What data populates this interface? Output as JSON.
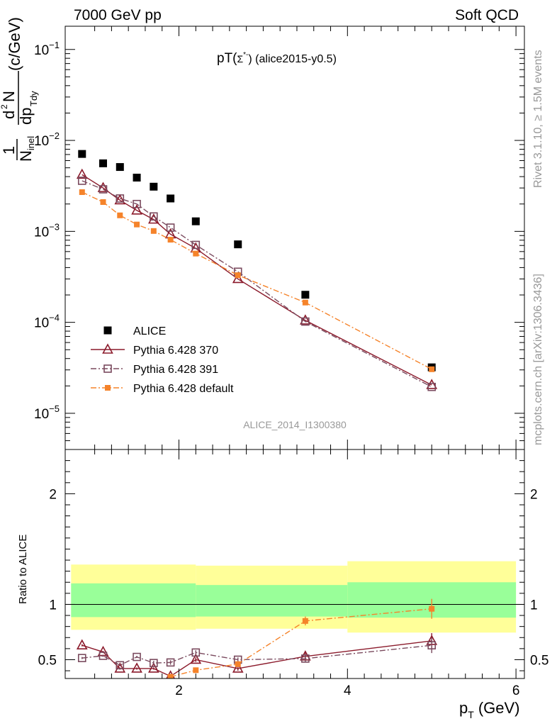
{
  "header": {
    "left": "7000 GeV pp",
    "right": "Soft QCD"
  },
  "side_labels": {
    "rivet": "Rivet 3.1.10, ≥ 1.5M events",
    "mcplots": "mcplots.cern.ch [arXiv:1306.3436]"
  },
  "watermark": "ALICE_2014_I1300380",
  "colors": {
    "alice": "#000000",
    "p370": "#8b1a2b",
    "p391": "#7a4a5e",
    "pdefault": "#f5832a",
    "band_inner": "#99ff99",
    "band_outer": "#ffff99"
  },
  "chart_data": [
    {
      "type": "scatter",
      "title": "pT(Σ*⁻) (alice2015-y0.5)",
      "title_main": "pT(",
      "title_sym": "Σ",
      "title_sup": "*-",
      "title_rest": ") (alice2015-y0.5)",
      "ylabel": "1/N_inel d²N/dp_T dy (c/GeV)",
      "ylabel_parts": {
        "one": "1",
        "N": "N",
        "inel": "inel",
        "d": "d",
        "two": "2",
        "N2": "N",
        "dp": "dp",
        "Tdy": "Tdy",
        "unit": "(c/GeV)"
      },
      "yscale": "log",
      "ylim": [
        4e-06,
        0.18
      ],
      "xlim": [
        0.65,
        6.1
      ],
      "yticks": [
        {
          "v": 1e-05,
          "base": "10",
          "exp": "−5"
        },
        {
          "v": 0.0001,
          "base": "10",
          "exp": "−4"
        },
        {
          "v": 0.001,
          "base": "10",
          "exp": "−3"
        },
        {
          "v": 0.01,
          "base": "10",
          "exp": "−2"
        },
        {
          "v": 0.1,
          "base": "10",
          "exp": "−1"
        }
      ],
      "legend_position": "lower-left",
      "series": [
        {
          "name": "ALICE",
          "key": "alice",
          "marker": "filled-square",
          "x": [
            0.85,
            1.1,
            1.3,
            1.5,
            1.7,
            1.9,
            2.2,
            2.7,
            3.5,
            5.0
          ],
          "y": [
            0.0071,
            0.0056,
            0.0051,
            0.0039,
            0.0031,
            0.0023,
            0.00129,
            0.00072,
            0.000201,
            3.2e-05
          ]
        },
        {
          "name": "Pythia 6.428 370",
          "key": "p370",
          "marker": "open-triangle",
          "line": "solid",
          "x": [
            0.85,
            1.1,
            1.3,
            1.5,
            1.7,
            1.9,
            2.2,
            2.7,
            3.5,
            5.0
          ],
          "y": [
            0.0042,
            0.003,
            0.0022,
            0.0017,
            0.00135,
            0.00093,
            0.00065,
            0.0003,
            0.000105,
            2.05e-05
          ]
        },
        {
          "name": "Pythia 6.428 391",
          "key": "p391",
          "marker": "open-square",
          "line": "dashdot",
          "x": [
            0.85,
            1.1,
            1.3,
            1.5,
            1.7,
            1.9,
            2.2,
            2.7,
            3.5,
            5.0
          ],
          "y": [
            0.0036,
            0.0029,
            0.0023,
            0.002,
            0.00146,
            0.0011,
            0.00071,
            0.00036,
            0.000102,
            1.95e-05
          ]
        },
        {
          "name": "Pythia 6.428 default",
          "key": "pdefault",
          "marker": "filled-square-small",
          "line": "dashdot",
          "x": [
            0.85,
            1.1,
            1.3,
            1.5,
            1.7,
            1.9,
            2.2,
            2.7,
            3.5,
            5.0
          ],
          "y": [
            0.0027,
            0.0021,
            0.0015,
            0.00119,
            0.00101,
            0.00081,
            0.00057,
            0.00033,
            0.000165,
            3.05e-05
          ]
        }
      ]
    },
    {
      "type": "line",
      "ylabel": "Ratio to ALICE",
      "ylim": [
        0.33,
        2.4
      ],
      "xlim": [
        0.65,
        6.1
      ],
      "yticks": [
        0.5,
        1,
        2
      ],
      "xticks": [
        2,
        4,
        6
      ],
      "xlabel": "p_T (GeV)",
      "xlabel_parts": {
        "p": "p",
        "T": "T",
        "unit": "(GeV)"
      },
      "reference": 1,
      "bands": [
        {
          "x0": 0.72,
          "x1": 2.2,
          "inner": [
            0.885,
            1.19
          ],
          "outer": [
            0.77,
            1.36
          ]
        },
        {
          "x0": 2.2,
          "x1": 4.0,
          "inner": [
            0.89,
            1.175
          ],
          "outer": [
            0.78,
            1.35
          ]
        },
        {
          "x0": 4.0,
          "x1": 6.0,
          "inner": [
            0.88,
            1.2
          ],
          "outer": [
            0.745,
            1.39
          ]
        }
      ],
      "series": [
        {
          "name": "Pythia 6.428 370",
          "key": "p370",
          "x": [
            0.85,
            1.1,
            1.3,
            1.5,
            1.7,
            1.9,
            2.2,
            2.7,
            3.5,
            5.0
          ],
          "y": [
            0.63,
            0.57,
            0.42,
            0.42,
            0.42,
            0.35,
            0.5,
            0.42,
            0.53,
            0.67
          ],
          "err": [
            0.01,
            0.01,
            0.01,
            0.01,
            0.01,
            0.02,
            0.02,
            0.02,
            0.04,
            0.07
          ]
        },
        {
          "name": "Pythia 6.428 391",
          "key": "p391",
          "x": [
            0.85,
            1.1,
            1.3,
            1.5,
            1.7,
            1.9,
            2.2,
            2.7,
            3.5,
            5.0
          ],
          "y": [
            0.515,
            0.535,
            0.45,
            0.525,
            0.47,
            0.475,
            0.565,
            0.5,
            0.51,
            0.63
          ],
          "err": [
            0.01,
            0.01,
            0.01,
            0.01,
            0.02,
            0.02,
            0.02,
            0.02,
            0.03,
            0.07
          ]
        },
        {
          "name": "Pythia 6.428 default",
          "key": "pdefault",
          "x": [
            1.9,
            2.2,
            2.7,
            3.5,
            5.0
          ],
          "y": [
            0.345,
            0.405,
            0.46,
            0.85,
            0.96
          ],
          "err": [
            0.01,
            0.02,
            0.02,
            0.04,
            0.09
          ]
        }
      ]
    }
  ]
}
